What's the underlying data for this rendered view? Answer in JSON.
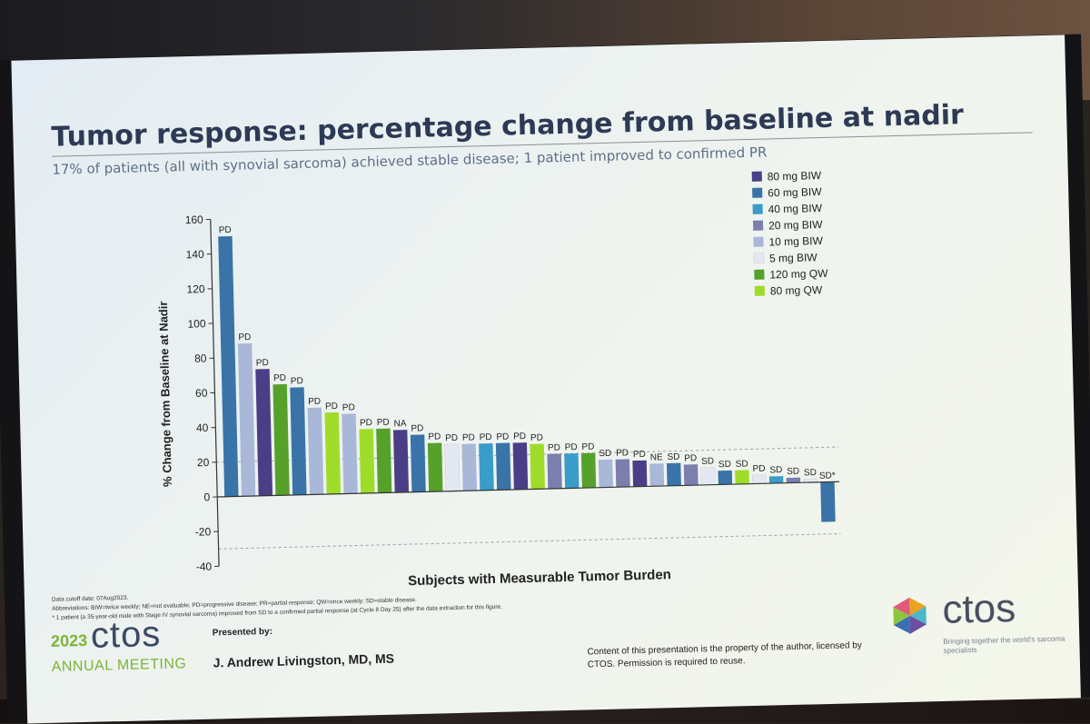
{
  "slide": {
    "title": "Tumor response: percentage change from baseline at nadir",
    "subtitle": "17% of patients (all with synovial sarcoma) achieved stable disease; 1 patient improved to confirmed PR",
    "footnotes": [
      "Data cutoff date: 07Aug2023.",
      "Abbreviations: BIW=twice weekly; NE=not evaluable; PD=progressive disease; PR=partial response; QW=once weekly; SD=stable disease.",
      "* 1 patient (a 35-year-old male with Stage IV synovial sarcoma) improved from SD to a confirmed partial response (at Cycle 8 Day 25) after the data extraction for this figure."
    ],
    "brand_year": "2023",
    "brand_name": "ctos",
    "brand_sub": "ANNUAL MEETING",
    "presented_by_label": "Presented by:",
    "presenter": "J. Andrew Livingston, MD, MS",
    "copyright": "Content of this presentation is the property of the author, licensed by CTOS. Permission is required to reuse.",
    "logo_name": "ctos",
    "logo_tagline": "Bringing together the world's sarcoma specialists"
  },
  "chart_data": {
    "type": "bar",
    "xlabel": "Subjects with Measurable Tumor Burden",
    "ylabel": "% Change from Baseline at Nadir",
    "ylim": [
      -40,
      160
    ],
    "yticks": [
      -40,
      -20,
      0,
      20,
      40,
      60,
      80,
      100,
      120,
      140,
      160
    ],
    "reference_lines": [
      20,
      -30
    ],
    "legend_position": "top-right",
    "legend": [
      {
        "label": "80 mg BIW",
        "color": "#4a3f86"
      },
      {
        "label": "60 mg BIW",
        "color": "#3a73a8"
      },
      {
        "label": "40 mg BIW",
        "color": "#3a9cc8"
      },
      {
        "label": "20 mg BIW",
        "color": "#7a7fae"
      },
      {
        "label": "10 mg BIW",
        "color": "#a9b8d8"
      },
      {
        "label": "5 mg BIW",
        "color": "#e4e8f2"
      },
      {
        "label": "120 mg QW",
        "color": "#56a12a"
      },
      {
        "label": "80 mg QW",
        "color": "#9fdc2a"
      }
    ],
    "bars": [
      {
        "value": 150,
        "label": "PD",
        "dose": "60 mg BIW"
      },
      {
        "value": 88,
        "label": "PD",
        "dose": "10 mg BIW"
      },
      {
        "value": 73,
        "label": "PD",
        "dose": "80 mg BIW"
      },
      {
        "value": 64,
        "label": "PD",
        "dose": "120 mg QW"
      },
      {
        "value": 62,
        "label": "PD",
        "dose": "60 mg BIW"
      },
      {
        "value": 50,
        "label": "PD",
        "dose": "10 mg BIW"
      },
      {
        "value": 47,
        "label": "PD",
        "dose": "80 mg QW"
      },
      {
        "value": 46,
        "label": "PD",
        "dose": "10 mg BIW"
      },
      {
        "value": 37,
        "label": "PD",
        "dose": "80 mg QW"
      },
      {
        "value": 37,
        "label": "PD",
        "dose": "120 mg QW"
      },
      {
        "value": 36,
        "label": "NA",
        "dose": "80 mg BIW"
      },
      {
        "value": 33,
        "label": "PD",
        "dose": "60 mg BIW"
      },
      {
        "value": 28,
        "label": "PD",
        "dose": "120 mg QW"
      },
      {
        "value": 27,
        "label": "PD",
        "dose": "5 mg BIW"
      },
      {
        "value": 27,
        "label": "PD",
        "dose": "10 mg BIW"
      },
      {
        "value": 27,
        "label": "PD",
        "dose": "40 mg BIW"
      },
      {
        "value": 27,
        "label": "PD",
        "dose": "60 mg BIW"
      },
      {
        "value": 27,
        "label": "PD",
        "dose": "80 mg BIW"
      },
      {
        "value": 26,
        "label": "PD",
        "dose": "80 mg QW"
      },
      {
        "value": 20,
        "label": "PD",
        "dose": "20 mg BIW"
      },
      {
        "value": 20,
        "label": "PD",
        "dose": "40 mg BIW"
      },
      {
        "value": 20,
        "label": "PD",
        "dose": "120 mg QW"
      },
      {
        "value": 16,
        "label": "SD",
        "dose": "10 mg BIW"
      },
      {
        "value": 16,
        "label": "PD",
        "dose": "20 mg BIW"
      },
      {
        "value": 15,
        "label": "PD",
        "dose": "80 mg BIW"
      },
      {
        "value": 13,
        "label": "NE",
        "dose": "10 mg BIW"
      },
      {
        "value": 13,
        "label": "SD",
        "dose": "60 mg BIW"
      },
      {
        "value": 12,
        "label": "PD",
        "dose": "20 mg BIW"
      },
      {
        "value": 10,
        "label": "SD",
        "dose": "5 mg BIW"
      },
      {
        "value": 8,
        "label": "SD",
        "dose": "60 mg BIW"
      },
      {
        "value": 8,
        "label": "SD",
        "dose": "80 mg QW"
      },
      {
        "value": 5,
        "label": "PD",
        "dose": "5 mg BIW"
      },
      {
        "value": 4,
        "label": "SD",
        "dose": "40 mg BIW"
      },
      {
        "value": 3,
        "label": "SD",
        "dose": "20 mg BIW"
      },
      {
        "value": 2,
        "label": "SD",
        "dose": "5 mg BIW"
      },
      {
        "value": -23,
        "label": "SD*",
        "dose": "60 mg BIW"
      }
    ]
  }
}
